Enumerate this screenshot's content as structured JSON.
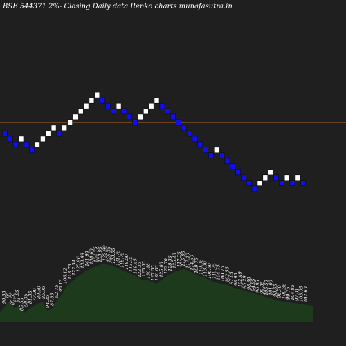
{
  "chart_data": {
    "type": "renko",
    "title": "BSE 544371 2%-  Closing Daily data  Renko  charts munafasutra.in",
    "colors": {
      "background": "#1f1f1f",
      "up_brick": "#ffffff",
      "down_brick": "#1010ee",
      "reference_line": "#b5651d",
      "volume_area": "#1d3a1d"
    },
    "reference_line_price": 117.7,
    "bricks": [
      {
        "price": 113.1,
        "dir": "down"
      },
      {
        "price": 110.9,
        "dir": "down"
      },
      {
        "price": 108.7,
        "dir": "down"
      },
      {
        "price": 110.9,
        "dir": "up"
      },
      {
        "price": 108.7,
        "dir": "down"
      },
      {
        "price": 106.6,
        "dir": "down"
      },
      {
        "price": 108.7,
        "dir": "up"
      },
      {
        "price": 110.9,
        "dir": "up"
      },
      {
        "price": 113.1,
        "dir": "up"
      },
      {
        "price": 115.4,
        "dir": "up"
      },
      {
        "price": 113.1,
        "dir": "down"
      },
      {
        "price": 115.4,
        "dir": "up"
      },
      {
        "price": 117.7,
        "dir": "up"
      },
      {
        "price": 120.1,
        "dir": "up"
      },
      {
        "price": 122.5,
        "dir": "up"
      },
      {
        "price": 124.9,
        "dir": "up"
      },
      {
        "price": 127.4,
        "dir": "up"
      },
      {
        "price": 130.0,
        "dir": "up"
      },
      {
        "price": 127.4,
        "dir": "down"
      },
      {
        "price": 124.9,
        "dir": "down"
      },
      {
        "price": 122.5,
        "dir": "down"
      },
      {
        "price": 124.9,
        "dir": "up"
      },
      {
        "price": 122.5,
        "dir": "down"
      },
      {
        "price": 120.1,
        "dir": "down"
      },
      {
        "price": 117.7,
        "dir": "down"
      },
      {
        "price": 120.1,
        "dir": "up"
      },
      {
        "price": 122.5,
        "dir": "up"
      },
      {
        "price": 124.9,
        "dir": "up"
      },
      {
        "price": 127.4,
        "dir": "up"
      },
      {
        "price": 124.9,
        "dir": "down"
      },
      {
        "price": 122.5,
        "dir": "down"
      },
      {
        "price": 120.1,
        "dir": "down"
      },
      {
        "price": 117.7,
        "dir": "down"
      },
      {
        "price": 115.4,
        "dir": "down"
      },
      {
        "price": 113.1,
        "dir": "down"
      },
      {
        "price": 110.9,
        "dir": "down"
      },
      {
        "price": 108.7,
        "dir": "down"
      },
      {
        "price": 106.6,
        "dir": "down"
      },
      {
        "price": 104.5,
        "dir": "down"
      },
      {
        "price": 106.6,
        "dir": "up"
      },
      {
        "price": 104.5,
        "dir": "down"
      },
      {
        "price": 102.4,
        "dir": "down"
      },
      {
        "price": 100.4,
        "dir": "down"
      },
      {
        "price": 98.4,
        "dir": "down"
      },
      {
        "price": 96.5,
        "dir": "down"
      },
      {
        "price": 94.6,
        "dir": "down"
      },
      {
        "price": 92.7,
        "dir": "down"
      },
      {
        "price": 94.6,
        "dir": "up"
      },
      {
        "price": 96.5,
        "dir": "up"
      },
      {
        "price": 98.4,
        "dir": "up"
      },
      {
        "price": 96.5,
        "dir": "down"
      },
      {
        "price": 94.6,
        "dir": "down"
      },
      {
        "price": 96.5,
        "dir": "up"
      },
      {
        "price": 94.6,
        "dir": "down"
      },
      {
        "price": 96.5,
        "dir": "up"
      },
      {
        "price": 94.6,
        "dir": "down"
      }
    ],
    "volume_profile": [
      13,
      22,
      30,
      20,
      24,
      12,
      18,
      22,
      26,
      29,
      16,
      19,
      31,
      39,
      51,
      57,
      63,
      68,
      73,
      76,
      79,
      82,
      84,
      82,
      80,
      77,
      74,
      71,
      68,
      65,
      60,
      61,
      58,
      55,
      60,
      65,
      69,
      73,
      75,
      76,
      73,
      70,
      66,
      64,
      61,
      58,
      56,
      54,
      53,
      50,
      48,
      46,
      44,
      42,
      40,
      38,
      36,
      34,
      32,
      30,
      29,
      28,
      27,
      26,
      25,
      24,
      23
    ],
    "volume_labels": [
      "90.55",
      "85",
      "85.55",
      "91.95",
      "85.55",
      "90.35",
      "81.35",
      "77.90",
      "89.50",
      "85.95",
      "94.25",
      "87.85",
      "92.75",
      "95.13",
      "106.12",
      "113.73",
      "122.54",
      "125.96",
      "133.99",
      "141.99",
      "138.60",
      "134.75",
      "133.95",
      "122.99",
      "125.35",
      "128.55",
      "121.75",
      "116.75",
      "118.59",
      "113.75",
      "119.45",
      "122.35",
      "125.65",
      "130.48",
      "127.55",
      "130.05",
      "125.00",
      "122.70",
      "120.35",
      "125.48",
      "117.35",
      "115.95",
      "117.20",
      "114.50",
      "109.75",
      "110.95",
      "113.00",
      "106.60",
      "110.75",
      "104.75",
      "100.75",
      "102.55",
      "97.05",
      "98.95",
      "102.49",
      "95.29",
      "98.30",
      "94.95",
      "96.95",
      "99.85",
      "105.50",
      "101.00",
      "98.65",
      "96.70",
      "100.35",
      "99.75",
      "104.85",
      "97.01",
      "103.05",
      "102.60"
    ]
  }
}
